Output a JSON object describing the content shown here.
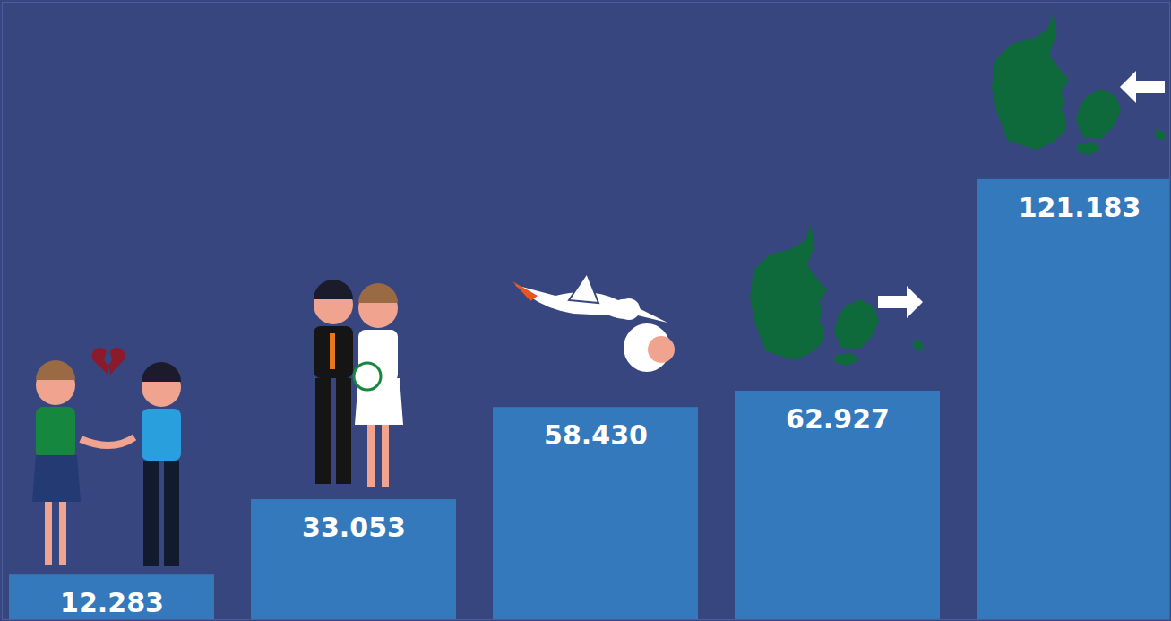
{
  "chart_data": {
    "type": "bar",
    "categories": [
      null,
      null,
      null,
      null,
      null
    ],
    "values": [
      12283,
      33053,
      58430,
      62927,
      121183
    ],
    "value_labels": [
      "12.283",
      "33.053",
      "58.430",
      "62.927",
      "121.183"
    ],
    "color": "#3479bb",
    "ylim": [
      0,
      170000
    ],
    "yticks": [],
    "tick_labels": false,
    "data_labels": true,
    "grid": false
  }
}
